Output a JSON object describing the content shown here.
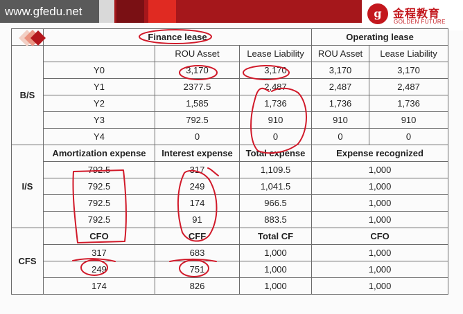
{
  "site": {
    "url": "www.gfedu.net"
  },
  "brand": {
    "chinese_name": "金程教育",
    "english_name": "GOLDEN FUTURE",
    "seal_glyph": "g"
  },
  "colors": {
    "brand_red": "#a5171b",
    "ink": "#d11a2a",
    "grid": "#6b6b6b"
  },
  "table": {
    "header": {
      "finance": "Finance lease",
      "operating": "Operating lease"
    },
    "bs": {
      "label": "B/S",
      "columns": [
        "ROU Asset",
        "Lease Liability",
        "ROU Asset",
        "Lease Liability"
      ],
      "rows": [
        {
          "year": "Y0",
          "values": [
            "3,170",
            "3,170",
            "3,170",
            "3,170"
          ]
        },
        {
          "year": "Y1",
          "values": [
            "2377.5",
            "2,487",
            "2,487",
            "2,487"
          ]
        },
        {
          "year": "Y2",
          "values": [
            "1,585",
            "1,736",
            "1,736",
            "1,736"
          ]
        },
        {
          "year": "Y3",
          "values": [
            "792.5",
            "910",
            "910",
            "910"
          ]
        },
        {
          "year": "Y4",
          "values": [
            "0",
            "0",
            "0",
            "0"
          ]
        }
      ]
    },
    "is": {
      "label": "I/S",
      "columns": [
        "Amortization expense",
        "Interest expense",
        "Total expense",
        "Expense recognized"
      ],
      "rows": [
        [
          "792.5",
          "317",
          "1,109.5",
          "1,000"
        ],
        [
          "792.5",
          "249",
          "1,041.5",
          "1,000"
        ],
        [
          "792.5",
          "174",
          "966.5",
          "1,000"
        ],
        [
          "792.5",
          "91",
          "883.5",
          "1,000"
        ]
      ]
    },
    "cfs": {
      "label": "CFS",
      "columns": [
        "CFO",
        "CFF",
        "Total CF",
        "CFO"
      ],
      "rows": [
        [
          "317",
          "683",
          "1,000",
          "1,000"
        ],
        [
          "249",
          "751",
          "1,000",
          "1,000"
        ],
        [
          "174",
          "826",
          "1,000",
          "1,000"
        ]
      ]
    }
  }
}
